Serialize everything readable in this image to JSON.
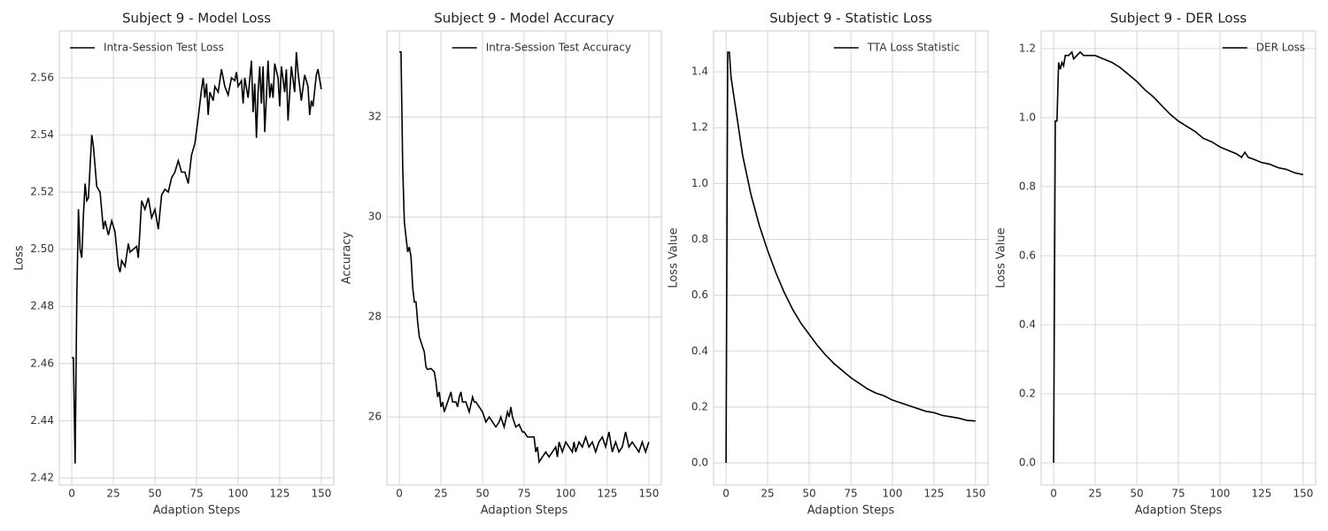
{
  "chart_data": [
    {
      "type": "line",
      "title": "Subject 9 - Model Loss",
      "x_label": "Adaption Steps",
      "y_label": "Loss",
      "x": [
        0,
        1,
        2,
        3,
        4,
        5,
        6,
        7,
        8,
        9,
        10,
        12,
        13,
        15,
        17,
        19,
        20,
        22,
        24,
        26,
        28,
        29,
        30,
        32,
        34,
        35,
        37,
        39,
        40,
        42,
        44,
        46,
        48,
        50,
        52,
        54,
        56,
        58,
        60,
        62,
        64,
        66,
        68,
        70,
        72,
        74,
        76,
        78,
        79,
        80,
        81,
        82,
        83,
        85,
        86,
        88,
        90,
        92,
        94,
        96,
        98,
        99,
        100,
        102,
        103,
        104,
        106,
        108,
        109,
        110,
        111,
        112,
        113,
        114,
        115,
        116,
        118,
        119,
        120,
        121,
        122,
        124,
        125,
        126,
        128,
        129,
        130,
        132,
        134,
        135,
        136,
        138,
        140,
        142,
        143,
        144,
        145,
        147,
        148,
        150
      ],
      "series": [
        {
          "name": "Intra-Session Test Loss",
          "color": "#000000",
          "values": [
            2.462,
            2.462,
            2.425,
            2.483,
            2.514,
            2.5,
            2.497,
            2.512,
            2.523,
            2.517,
            2.518,
            2.54,
            2.536,
            2.522,
            2.52,
            2.507,
            2.51,
            2.505,
            2.51,
            2.506,
            2.494,
            2.492,
            2.496,
            2.494,
            2.502,
            2.499,
            2.5,
            2.501,
            2.497,
            2.517,
            2.514,
            2.518,
            2.511,
            2.514,
            2.507,
            2.519,
            2.521,
            2.52,
            2.525,
            2.527,
            2.531,
            2.527,
            2.527,
            2.523,
            2.533,
            2.537,
            2.546,
            2.556,
            2.56,
            2.553,
            2.558,
            2.547,
            2.555,
            2.552,
            2.557,
            2.555,
            2.563,
            2.557,
            2.554,
            2.56,
            2.559,
            2.562,
            2.557,
            2.559,
            2.551,
            2.56,
            2.553,
            2.566,
            2.548,
            2.558,
            2.539,
            2.555,
            2.564,
            2.551,
            2.564,
            2.541,
            2.566,
            2.553,
            2.558,
            2.553,
            2.565,
            2.56,
            2.55,
            2.564,
            2.555,
            2.563,
            2.545,
            2.564,
            2.555,
            2.569,
            2.562,
            2.552,
            2.561,
            2.557,
            2.547,
            2.552,
            2.55,
            2.561,
            2.563,
            2.556
          ]
        }
      ],
      "xlim": [
        -7.5,
        157.5
      ],
      "ylim": [
        2.4175,
        2.5764
      ],
      "xticks": [
        0,
        25,
        50,
        75,
        100,
        125,
        150
      ],
      "yticks": [
        2.42,
        2.44,
        2.46,
        2.48,
        {
          "value": 2.5,
          "label": "2.50"
        },
        2.52,
        2.54,
        2.56
      ],
      "grid": true,
      "legend": "upper-left"
    },
    {
      "type": "line",
      "title": "Subject 9 - Model Accuracy",
      "x_label": "Adaption Steps",
      "y_label": "Accuracy",
      "x": [
        0,
        1,
        2,
        3,
        4,
        5,
        6,
        7,
        8,
        9,
        10,
        11,
        12,
        13,
        14,
        15,
        16,
        17,
        19,
        21,
        22,
        23,
        24,
        25,
        26,
        27,
        29,
        31,
        32,
        34,
        35,
        36,
        37,
        38,
        40,
        42,
        44,
        45,
        46,
        48,
        50,
        51,
        52,
        54,
        56,
        58,
        60,
        61,
        63,
        65,
        66,
        67,
        68,
        70,
        72,
        74,
        75,
        77,
        79,
        81,
        82,
        83,
        84,
        86,
        88,
        90,
        92,
        94,
        95,
        96,
        98,
        100,
        102,
        104,
        105,
        106,
        108,
        110,
        112,
        114,
        116,
        118,
        120,
        122,
        124,
        126,
        128,
        130,
        132,
        134,
        136,
        138,
        140,
        142,
        144,
        146,
        148,
        150
      ],
      "series": [
        {
          "name": "Intra-Session Test Accuracy",
          "color": "#000000",
          "values": [
            33.3,
            33.3,
            31.0,
            29.9,
            29.6,
            29.3,
            29.4,
            29.2,
            28.6,
            28.3,
            28.3,
            27.9,
            27.6,
            27.5,
            27.4,
            27.3,
            27.0,
            26.95,
            26.97,
            26.9,
            26.7,
            26.4,
            26.5,
            26.2,
            26.3,
            26.1,
            26.3,
            26.5,
            26.3,
            26.3,
            26.2,
            26.4,
            26.5,
            26.3,
            26.3,
            26.1,
            26.4,
            26.3,
            26.3,
            26.2,
            26.1,
            26.0,
            25.9,
            26.0,
            25.9,
            25.8,
            25.9,
            26.0,
            25.8,
            26.1,
            26.0,
            26.2,
            26.0,
            25.8,
            25.85,
            25.7,
            25.7,
            25.6,
            25.6,
            25.6,
            25.3,
            25.4,
            25.1,
            25.2,
            25.3,
            25.2,
            25.3,
            25.4,
            25.2,
            25.5,
            25.3,
            25.5,
            25.4,
            25.3,
            25.5,
            25.3,
            25.5,
            25.4,
            25.6,
            25.4,
            25.5,
            25.3,
            25.5,
            25.6,
            25.4,
            25.7,
            25.3,
            25.5,
            25.3,
            25.4,
            25.7,
            25.4,
            25.5,
            25.4,
            25.3,
            25.5,
            25.3,
            25.5
          ]
        }
      ],
      "xlim": [
        -7.5,
        157.5
      ],
      "ylim": [
        24.64,
        33.72
      ],
      "xticks": [
        0,
        25,
        50,
        75,
        100,
        125,
        150
      ],
      "yticks": [
        26,
        28,
        30,
        32
      ],
      "grid": true,
      "legend": "upper-right"
    },
    {
      "type": "line",
      "title": "Subject 9 - Statistic Loss",
      "x_label": "Adaption Steps",
      "y_label": "Loss Value",
      "x": [
        0,
        1,
        2,
        3,
        5,
        10,
        15,
        20,
        25,
        30,
        35,
        40,
        45,
        50,
        55,
        60,
        65,
        70,
        75,
        80,
        85,
        90,
        95,
        100,
        105,
        110,
        115,
        120,
        125,
        130,
        135,
        140,
        145,
        150
      ],
      "series": [
        {
          "name": "TTA Loss Statistic",
          "color": "#000000",
          "values": [
            0,
            1.47,
            1.47,
            1.38,
            1.3,
            1.1,
            0.96,
            0.85,
            0.76,
            0.68,
            0.61,
            0.55,
            0.5,
            0.46,
            0.42,
            0.385,
            0.355,
            0.33,
            0.305,
            0.285,
            0.265,
            0.25,
            0.24,
            0.225,
            0.215,
            0.205,
            0.195,
            0.185,
            0.18,
            0.17,
            0.165,
            0.16,
            0.152,
            0.15
          ]
        }
      ],
      "xlim": [
        -7.5,
        157.5
      ],
      "ylim": [
        -0.079,
        1.546
      ],
      "xticks": [
        0,
        25,
        50,
        75,
        100,
        125,
        150
      ],
      "yticks": [
        {
          "value": 0,
          "label": "0.0"
        },
        0.2,
        0.4,
        0.6,
        0.8,
        {
          "value": 1,
          "label": "1.0"
        },
        1.2,
        1.4
      ],
      "grid": true,
      "legend": "upper-right"
    },
    {
      "type": "line",
      "title": "Subject 9 - DER Loss",
      "x_label": "Adaption Steps",
      "y_label": "Loss Value",
      "x": [
        0,
        1,
        2,
        3,
        4,
        5,
        6,
        7,
        9,
        11,
        12,
        14,
        16,
        18,
        20,
        25,
        30,
        35,
        40,
        45,
        50,
        55,
        60,
        65,
        70,
        75,
        80,
        85,
        90,
        95,
        100,
        105,
        110,
        113,
        115,
        117,
        120,
        125,
        130,
        135,
        140,
        145,
        150
      ],
      "series": [
        {
          "name": "DER Loss",
          "color": "#000000",
          "values": [
            0,
            0.99,
            0.99,
            1.16,
            1.14,
            1.16,
            1.15,
            1.18,
            1.18,
            1.19,
            1.17,
            1.18,
            1.19,
            1.18,
            1.18,
            1.18,
            1.17,
            1.16,
            1.145,
            1.125,
            1.105,
            1.08,
            1.06,
            1.035,
            1.01,
            0.99,
            0.975,
            0.96,
            0.94,
            0.93,
            0.915,
            0.905,
            0.895,
            0.885,
            0.9,
            0.885,
            0.88,
            0.87,
            0.865,
            0.855,
            0.85,
            0.84,
            0.835
          ]
        }
      ],
      "xlim": [
        -7.5,
        157.5
      ],
      "ylim": [
        -0.064,
        1.251
      ],
      "xticks": [
        0,
        25,
        50,
        75,
        100,
        125,
        150
      ],
      "yticks": [
        {
          "value": 0,
          "label": "0.0"
        },
        0.2,
        0.4,
        0.6,
        0.8,
        {
          "value": 1,
          "label": "1.0"
        },
        1.2
      ],
      "grid": true,
      "legend": "upper-right"
    }
  ]
}
